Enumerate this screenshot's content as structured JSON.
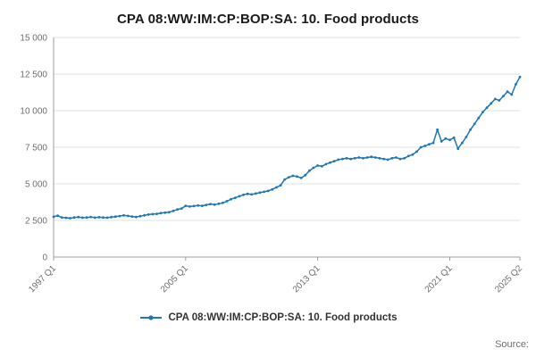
{
  "title": "CPA 08:WW:IM:CP:BOP:SA: 10. Food products",
  "legend": {
    "label": "CPA 08:WW:IM:CP:BOP:SA: 10. Food products"
  },
  "source_label": "Source:",
  "colors": {
    "line": "#1f77b4",
    "grid": "#e2e2e2",
    "axis": "#9e9e9e"
  },
  "chart_data": {
    "type": "line",
    "title": "CPA 08:WW:IM:CP:BOP:SA: 10. Food products",
    "x_start": "1997 Q1",
    "x_end": "2025 Q2",
    "frequency": "quarterly",
    "ylim": [
      0,
      15000
    ],
    "yticks": [
      0,
      2500,
      5000,
      7500,
      10000,
      12500,
      15000
    ],
    "ytick_labels": [
      "0",
      "2 500",
      "5 000",
      "7 500",
      "10 000",
      "12 500",
      "15 000"
    ],
    "x_ticks": [
      {
        "label": "1997 Q1",
        "index": 0
      },
      {
        "label": "2005 Q1",
        "index": 32
      },
      {
        "label": "2013 Q1",
        "index": 64
      },
      {
        "label": "2021 Q1",
        "index": 96
      },
      {
        "label": "2025 Q2",
        "index": 113
      }
    ],
    "legend_position": "bottom",
    "grid": true,
    "series": [
      {
        "name": "CPA 08:WW:IM:CP:BOP:SA: 10. Food products",
        "values": [
          2750,
          2830,
          2700,
          2680,
          2650,
          2700,
          2730,
          2690,
          2700,
          2740,
          2690,
          2720,
          2700,
          2690,
          2730,
          2760,
          2800,
          2850,
          2810,
          2770,
          2740,
          2790,
          2850,
          2900,
          2930,
          2950,
          3000,
          3030,
          3060,
          3150,
          3250,
          3320,
          3500,
          3450,
          3480,
          3520,
          3500,
          3560,
          3620,
          3580,
          3640,
          3700,
          3820,
          3950,
          4050,
          4150,
          4250,
          4320,
          4280,
          4340,
          4400,
          4460,
          4520,
          4620,
          4760,
          4900,
          5300,
          5450,
          5550,
          5500,
          5400,
          5600,
          5900,
          6100,
          6250,
          6200,
          6350,
          6450,
          6550,
          6650,
          6700,
          6750,
          6700,
          6750,
          6800,
          6750,
          6800,
          6850,
          6800,
          6750,
          6700,
          6650,
          6750,
          6800,
          6700,
          6750,
          6900,
          7000,
          7200,
          7500,
          7600,
          7700,
          7800,
          8700,
          7900,
          8100,
          8000,
          8150,
          7400,
          7800,
          8200,
          8700,
          9100,
          9500,
          9900,
          10200,
          10500,
          10800,
          10700,
          11000,
          11300,
          11100,
          11800,
          12300
        ]
      }
    ]
  }
}
